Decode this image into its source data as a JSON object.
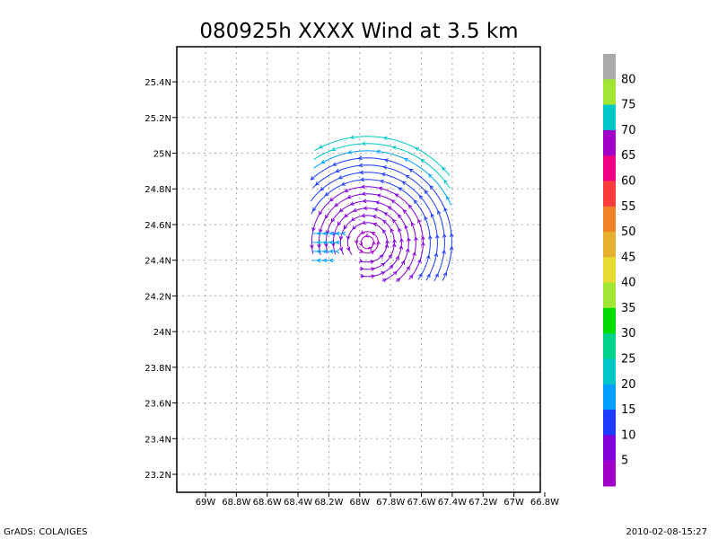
{
  "chart_data": {
    "type": "streamline",
    "title": "080925h XXXX Wind at 3.5 km",
    "xlabel": "",
    "ylabel": "",
    "xlim": [
      -69.15,
      -66.8
    ],
    "ylim": [
      23.1,
      25.6
    ],
    "grid": true,
    "x_ticks": [
      -69,
      -68.8,
      -68.6,
      -68.4,
      -68.2,
      -68,
      -67.8,
      -67.6,
      -67.4,
      -67.2,
      -67,
      -66.8
    ],
    "x_tick_labels": [
      "69W",
      "68.8W",
      "68.6W",
      "68.4W",
      "68.2W",
      "68W",
      "67.8W",
      "67.6W",
      "67.4W",
      "67.2W",
      "67W",
      "66.8W"
    ],
    "y_ticks": [
      23.2,
      23.4,
      23.6,
      23.8,
      24,
      24.2,
      24.4,
      24.6,
      24.8,
      25,
      25.2,
      25.4
    ],
    "y_tick_labels": [
      "23.2N",
      "23.4N",
      "23.6N",
      "23.8N",
      "24N",
      "24.2N",
      "24.4N",
      "24.6N",
      "24.8N",
      "25N",
      "25.2N",
      "25.4N"
    ],
    "vortex_center": [
      -67.95,
      24.5
    ],
    "colorbar": {
      "labels": [
        "5",
        "10",
        "15",
        "20",
        "25",
        "30",
        "35",
        "40",
        "45",
        "50",
        "55",
        "60",
        "65",
        "70",
        "75",
        "80"
      ],
      "colors": [
        "#a000c8",
        "#8200dc",
        "#1e3cff",
        "#00a0ff",
        "#00c8c8",
        "#00d28c",
        "#00dc00",
        "#a0e632",
        "#e6dc32",
        "#e6af2d",
        "#f08228",
        "#fa3c3c",
        "#f00082",
        "#a000c8",
        "#00c8c8",
        "#a0e632",
        "#aaaaaa"
      ]
    }
  },
  "footer": {
    "left": "GrADS: COLA/IGES",
    "right": "2010-02-08-15:27"
  }
}
